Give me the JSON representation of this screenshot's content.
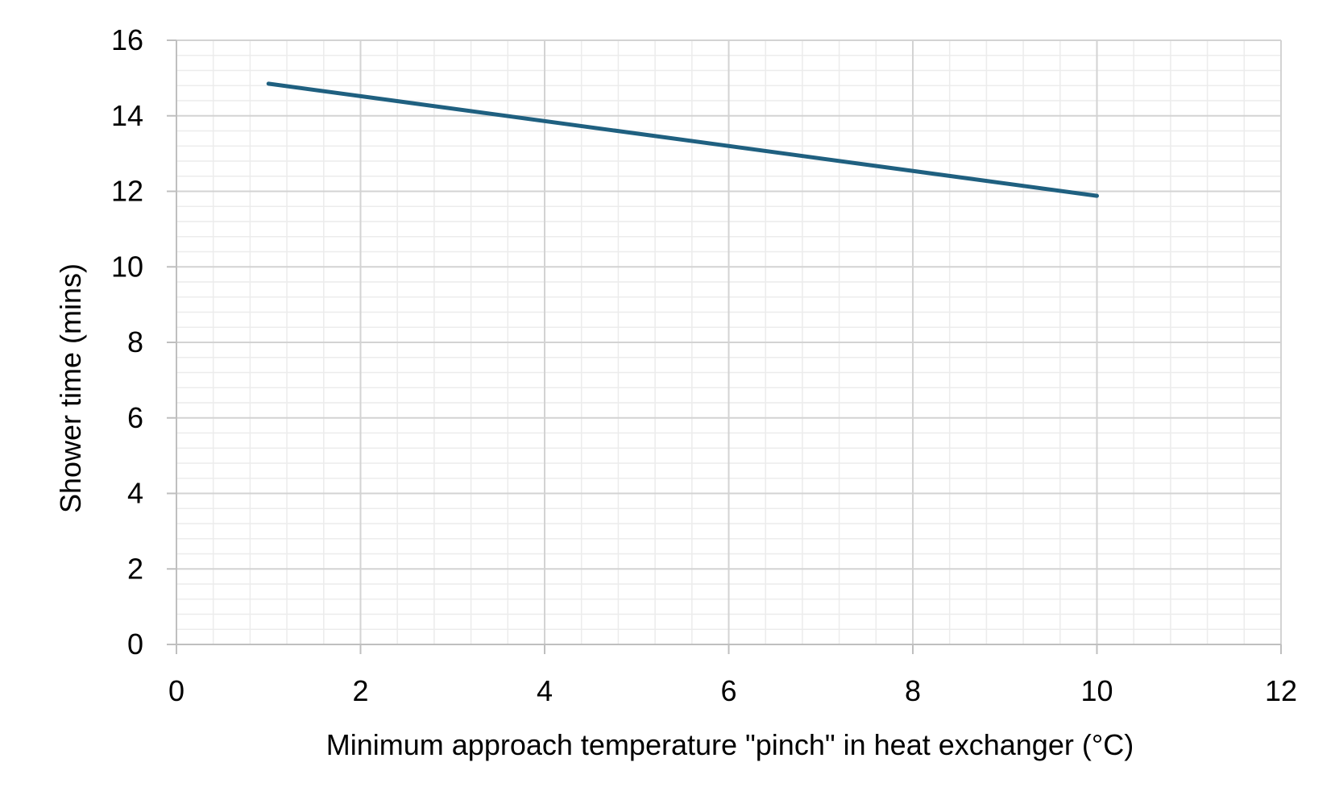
{
  "chart_data": {
    "type": "line",
    "title": "",
    "xlabel": "Minimum approach temperature \"pinch\" in heat exchanger (°C)",
    "ylabel": "Shower time (mins)",
    "xlim": [
      0,
      12
    ],
    "ylim": [
      0,
      16
    ],
    "x_ticks": [
      0,
      2,
      4,
      6,
      8,
      10,
      12
    ],
    "y_ticks": [
      0,
      2,
      4,
      6,
      8,
      10,
      12,
      14,
      16
    ],
    "x_tick_labels": [
      "0",
      "2",
      "4",
      "6",
      "8",
      "10",
      "12"
    ],
    "y_tick_labels": [
      "0",
      "2",
      "4",
      "6",
      "8",
      "10",
      "12",
      "14",
      "16"
    ],
    "grid": {
      "major": true,
      "minor": true
    },
    "legend": "none",
    "series": [
      {
        "color": "#1f6080",
        "x": [
          1,
          10
        ],
        "y": [
          14.85,
          11.88
        ]
      }
    ]
  }
}
